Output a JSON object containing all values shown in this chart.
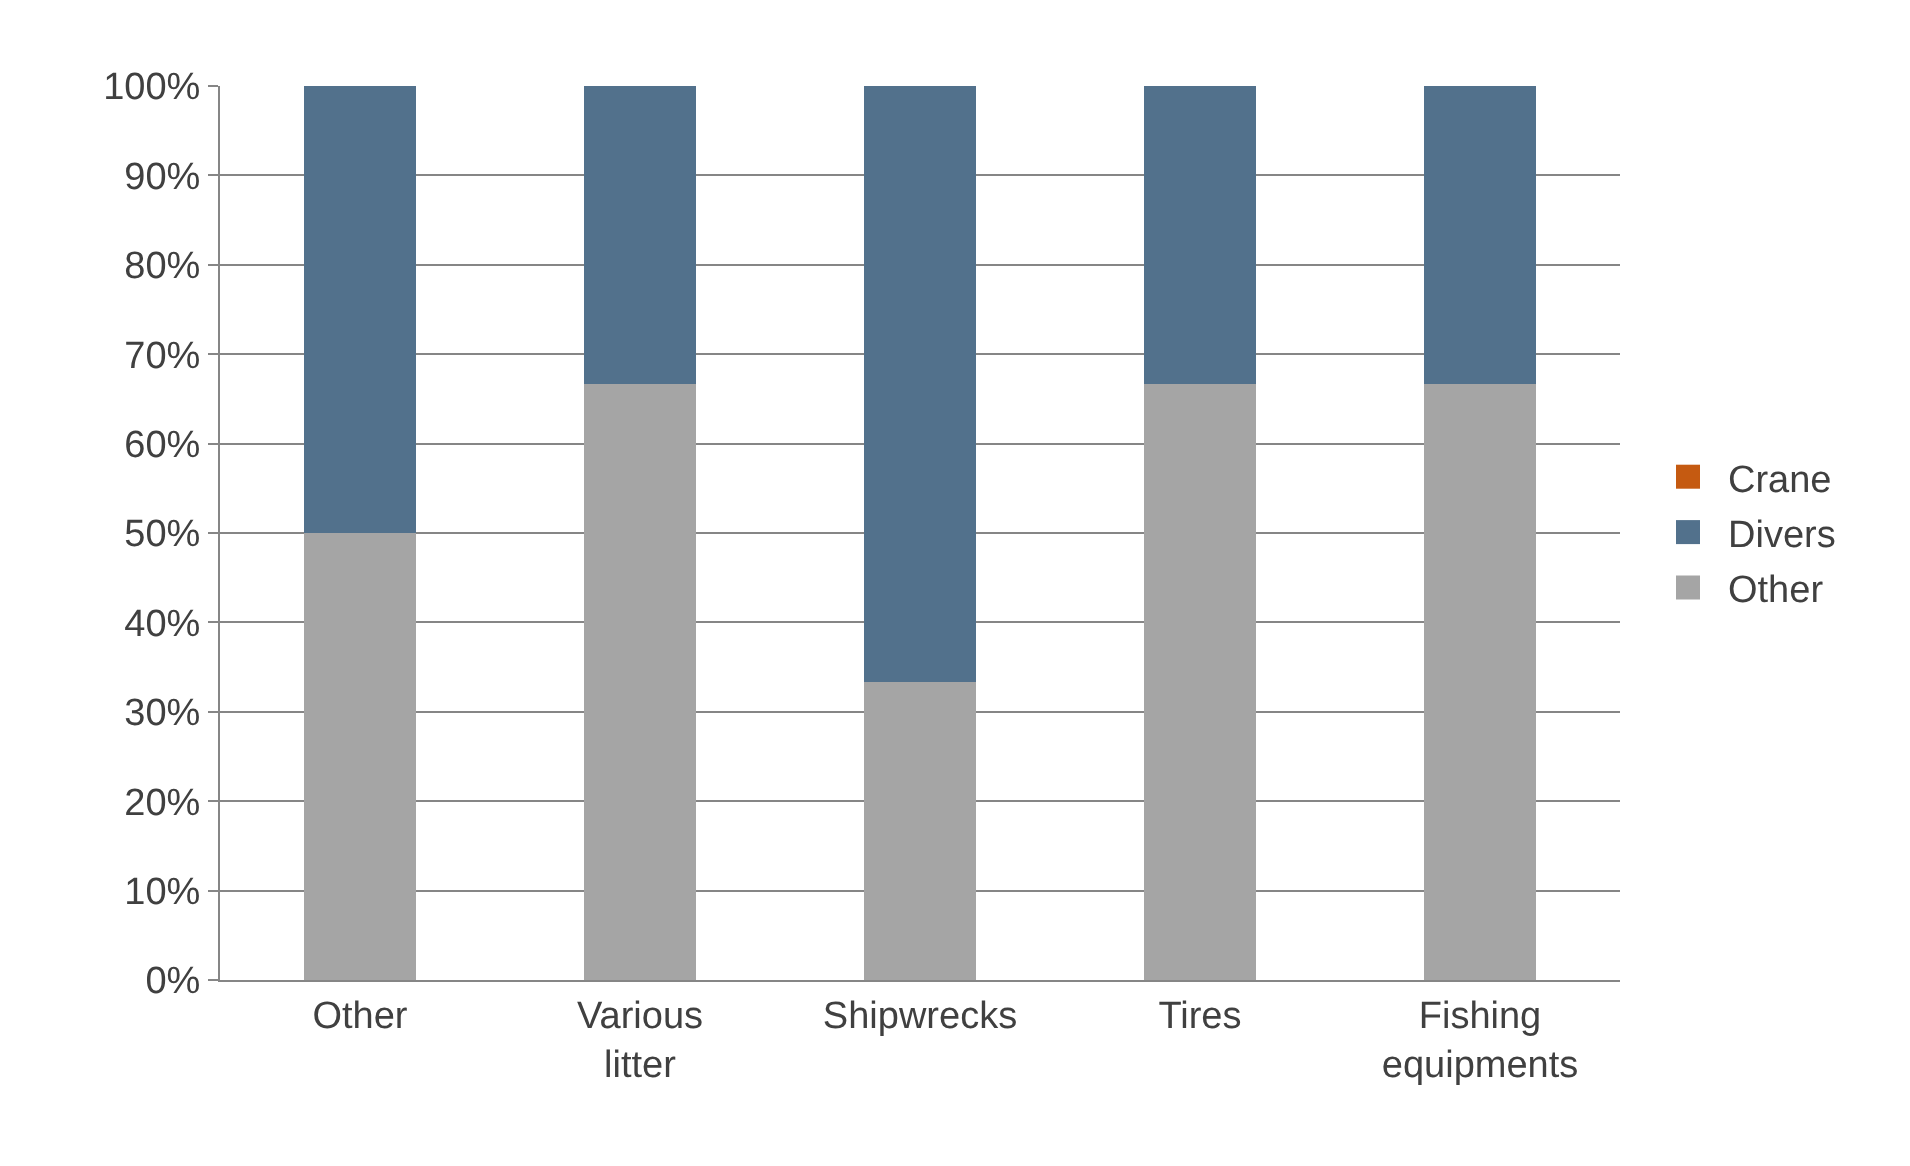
{
  "chart_data": {
    "type": "bar",
    "stacked": true,
    "categories": [
      "Other",
      "Various litter",
      "Shipwrecks",
      "Tires",
      "Fishing equipments"
    ],
    "series": [
      {
        "name": "Other",
        "color": "#a5a5a5",
        "values": [
          50,
          66.7,
          33.3,
          66.7,
          66.7
        ]
      },
      {
        "name": "Divers",
        "color": "#52718c",
        "values": [
          50,
          33.3,
          66.7,
          33.3,
          33.3
        ]
      },
      {
        "name": "Crane",
        "color": "#c55a11",
        "values": [
          0,
          0,
          0,
          0,
          0
        ]
      }
    ],
    "ylim": [
      0,
      100
    ],
    "yticks": [
      {
        "value": 0,
        "label": "0%"
      },
      {
        "value": 10,
        "label": "10%"
      },
      {
        "value": 20,
        "label": "20%"
      },
      {
        "value": 30,
        "label": "30%"
      },
      {
        "value": 40,
        "label": "40%"
      },
      {
        "value": 50,
        "label": "50%"
      },
      {
        "value": 60,
        "label": "60%"
      },
      {
        "value": 70,
        "label": "70%"
      },
      {
        "value": 80,
        "label": "80%"
      },
      {
        "value": 90,
        "label": "90%"
      },
      {
        "value": 100,
        "label": "100%"
      }
    ],
    "grid": "y",
    "legend": "right"
  }
}
